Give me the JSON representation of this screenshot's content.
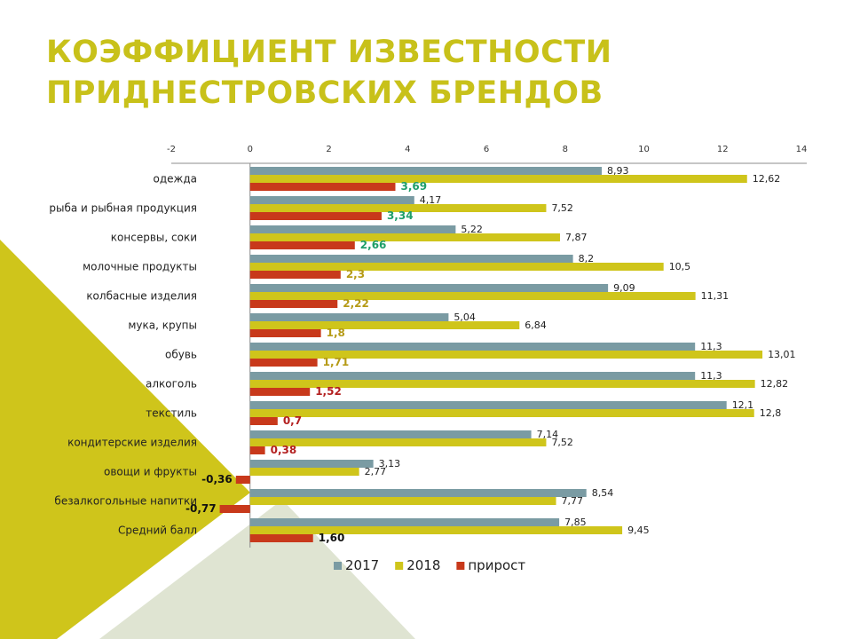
{
  "slide": {
    "title_lines": [
      "КОЭФФИЦИЕНТ ИЗВЕСТНОСТИ",
      "ПРИДНЕСТРОВСКИХ БРЕНДОВ"
    ]
  },
  "colors": {
    "title": "#c8c11a",
    "series_2017": "#7a9ba3",
    "series_2018": "#cfc51b",
    "series_growth": "#c8391b",
    "decor_yellow": "#cfc51b",
    "decor_sage": "#dfe4d2"
  },
  "chart_data": {
    "type": "bar",
    "orientation": "horizontal",
    "title": "",
    "xlabel": "",
    "ylabel": "",
    "xlim": [
      -2,
      14
    ],
    "xticks": [
      -2,
      0,
      2,
      4,
      6,
      8,
      10,
      12,
      14
    ],
    "x_axis_position": "top",
    "grid": false,
    "legend_position": "bottom",
    "categories": [
      "одежда",
      "рыба и рыбная продукция",
      "консервы, соки",
      "молочные продукты",
      "колбасные изделия",
      "мука, крупы",
      "обувь",
      "алкоголь",
      "текстиль",
      "кондитерские изделия",
      "овощи и фрукты",
      "безалкогольные напитки",
      "Средний балл"
    ],
    "series": [
      {
        "name": "2017",
        "color": "#7a9ba3",
        "values": [
          8.93,
          4.17,
          5.22,
          8.2,
          9.09,
          5.04,
          11.3,
          11.3,
          12.1,
          7.14,
          3.13,
          8.54,
          7.85
        ],
        "labels": [
          "8,93",
          "4,17",
          "5,22",
          "8,2",
          "9,09",
          "5,04",
          "11,3",
          "11,3",
          "12,1",
          "7,14",
          "3,13",
          "8,54",
          "7,85"
        ]
      },
      {
        "name": "2018",
        "color": "#cfc51b",
        "values": [
          12.62,
          7.52,
          7.87,
          10.5,
          11.31,
          6.84,
          13.01,
          12.82,
          12.8,
          7.52,
          2.77,
          7.77,
          9.45
        ],
        "labels": [
          "12,62",
          "7,52",
          "7,87",
          "10,5",
          "11,31",
          "6,84",
          "13,01",
          "12,82",
          "12,8",
          "7,52",
          "2,77",
          "7,77",
          "9,45"
        ]
      },
      {
        "name": "прирост",
        "color": "#c8391b",
        "values": [
          3.69,
          3.34,
          2.66,
          2.3,
          2.22,
          1.8,
          1.71,
          1.52,
          0.7,
          0.38,
          -0.36,
          -0.77,
          1.6
        ],
        "labels": [
          "3,69",
          "3,34",
          "2,66",
          "2,3",
          "2,22",
          "1,8",
          "1,71",
          "1,52",
          "0,7",
          "0,38",
          "-0,36",
          "-0,77",
          "1,60"
        ],
        "label_colors": [
          "#1f9e6a",
          "#1f9e6a",
          "#1f9e6a",
          "#b59a16",
          "#b59a16",
          "#b59a16",
          "#b59a16",
          "#b31f1f",
          "#b31f1f",
          "#b31f1f",
          "#111111",
          "#111111",
          "#111111"
        ]
      }
    ]
  }
}
